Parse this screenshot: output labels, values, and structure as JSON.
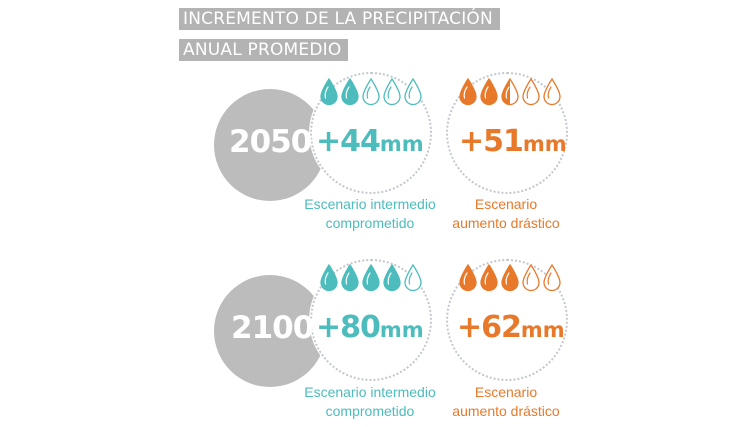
{
  "header": {
    "title_line1": "INCREMENTO DE LA PRECIPITACIÓN",
    "title_line2": "ANUAL PROMEDIO"
  },
  "colors": {
    "teal": "#4dbcbc",
    "orange": "#e8792b",
    "gray": "#bcbcbc",
    "title_bg": "#b3b3b3"
  },
  "rows": [
    {
      "year": "2050",
      "intermediate": {
        "value": "+44",
        "unit": "mm",
        "drops_filled": 2,
        "drops_total": 5,
        "label_line1": "Escenario intermedio",
        "label_line2": "comprometido"
      },
      "drastic": {
        "value": "+51",
        "unit": "mm",
        "drops_filled": 2.5,
        "drops_total": 5,
        "label_line1": "Escenario",
        "label_line2": "aumento drástico"
      }
    },
    {
      "year": "2100",
      "intermediate": {
        "value": "+80",
        "unit": "mm",
        "drops_filled": 4,
        "drops_total": 5,
        "label_line1": "Escenario intermedio",
        "label_line2": "comprometido"
      },
      "drastic": {
        "value": "+62",
        "unit": "mm",
        "drops_filled": 3.1,
        "drops_total": 5,
        "label_line1": "Escenario",
        "label_line2": "aumento drástico"
      }
    }
  ],
  "chart_data": {
    "type": "table",
    "title": "Incremento de la precipitación anual promedio",
    "categories": [
      "2050",
      "2100"
    ],
    "series": [
      {
        "name": "Escenario intermedio comprometido",
        "values": [
          44,
          80
        ],
        "unit": "mm",
        "drops": [
          2,
          4
        ]
      },
      {
        "name": "Escenario aumento drástico",
        "values": [
          51,
          62
        ],
        "unit": "mm",
        "drops": [
          2.5,
          3.1
        ]
      }
    ],
    "drops_scale_max": 5
  }
}
